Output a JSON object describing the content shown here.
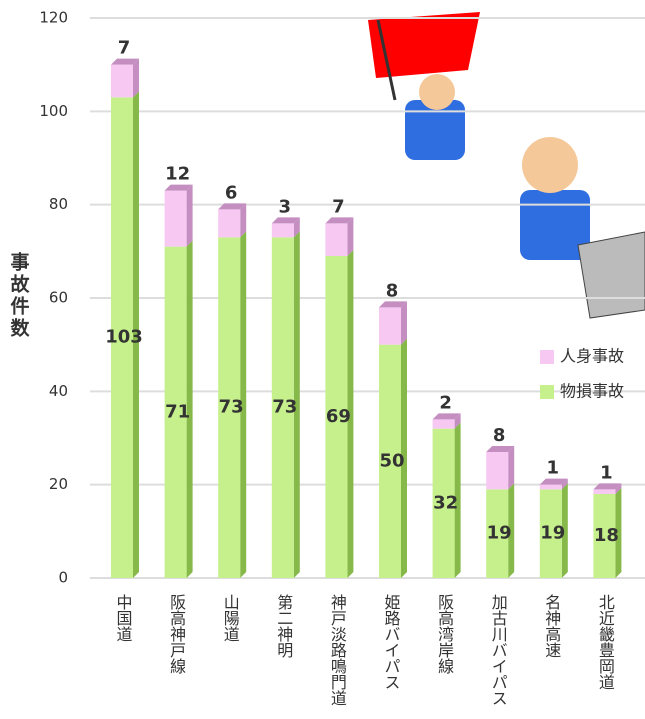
{
  "chart_data": {
    "type": "stacked_bar",
    "y_label": "事故件数",
    "categories": [
      "中国道",
      "阪高神戸線",
      "山陽道",
      "第二神明",
      "神戸淡路鳴門道",
      "姫路バイパス",
      "阪高湾岸線",
      "加古川バイパス",
      "名神高速",
      "北近畿豊岡道"
    ],
    "series": [
      {
        "name": "物損事故",
        "color": "#c5f08c",
        "side": "#86b84a",
        "values": [
          103,
          71,
          73,
          73,
          69,
          50,
          32,
          19,
          19,
          18
        ]
      },
      {
        "name": "人身事故",
        "color": "#f6c8f2",
        "side": "#c48fc0",
        "values": [
          7,
          12,
          6,
          3,
          7,
          8,
          2,
          8,
          1,
          1
        ]
      }
    ],
    "ylim": [
      0,
      120
    ],
    "yticks": [
      0,
      20,
      40,
      60,
      80,
      100,
      120
    ],
    "grid": true,
    "legend": "right"
  }
}
